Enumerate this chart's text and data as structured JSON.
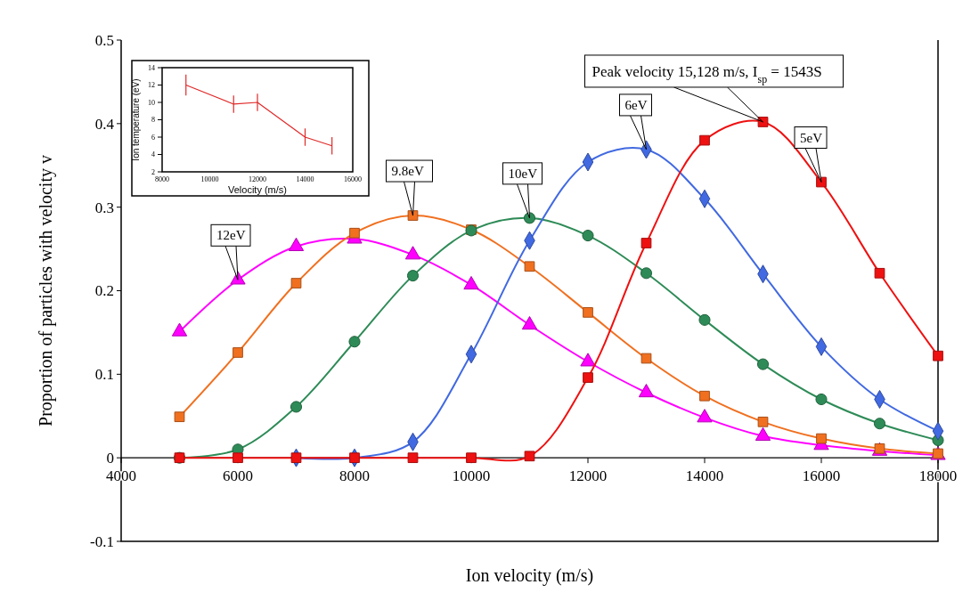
{
  "chart_data": [
    {
      "type": "line",
      "xlabel": "Ion velocity (m/s)",
      "ylabel": "Proportion of particles with velocity v",
      "x": [
        5000,
        6000,
        7000,
        8000,
        9000,
        10000,
        11000,
        12000,
        13000,
        14000,
        15000,
        16000,
        17000,
        18000
      ],
      "series": [
        {
          "color": "#ff00ff",
          "marker": "triangle",
          "values": [
            0.151,
            0.213,
            0.253,
            0.262,
            0.243,
            0.207,
            0.159,
            0.115,
            0.078,
            0.048,
            0.026,
            0.015,
            0.008,
            0.003
          ]
        },
        {
          "color": "#f07020",
          "marker": "square",
          "values": [
            0.049,
            0.126,
            0.209,
            0.269,
            0.29,
            0.273,
            0.229,
            0.174,
            0.119,
            0.074,
            0.043,
            0.023,
            0.011,
            0.005
          ]
        },
        {
          "color": "#2e8b57",
          "marker": "circle",
          "values": [
            0,
            0.01,
            0.061,
            0.139,
            0.218,
            0.272,
            0.287,
            0.266,
            0.221,
            0.165,
            0.112,
            0.07,
            0.041,
            0.021
          ]
        },
        {
          "color": "#4169e1",
          "marker": "diamond",
          "values": [
            null,
            null,
            0,
            0,
            0.019,
            0.124,
            0.26,
            0.354,
            0.369,
            0.31,
            0.22,
            0.133,
            0.07,
            0.032
          ]
        },
        {
          "color": "#ee1111",
          "marker": "square",
          "values": [
            0,
            0,
            0,
            0,
            0,
            0,
            0.002,
            0.096,
            0.257,
            0.38,
            0.402,
            0.33,
            0.221,
            0.122
          ]
        }
      ],
      "xlim": [
        4000,
        18000
      ],
      "xticks": [
        4000,
        6000,
        8000,
        10000,
        12000,
        14000,
        16000,
        18000
      ],
      "ylim": [
        -0.1,
        0.5
      ],
      "yticks": [
        {
          "value": -0.1,
          "label": "-0.1"
        },
        0,
        0.1,
        0.2,
        0.3,
        0.4,
        0.5
      ],
      "annotations": [
        {
          "text": "12eV",
          "x": 6000,
          "y": 0.213
        },
        {
          "text": "9.8eV",
          "x": 9000,
          "y": 0.29
        },
        {
          "text": "10eV",
          "x": 11000,
          "y": 0.287
        },
        {
          "text": "6eV",
          "x": 13000,
          "y": 0.369
        },
        {
          "text": "5eV",
          "x": 16000,
          "y": 0.33
        },
        {
          "text": "Peak velocity 15,128 m/s, I$_{sp}$ = 1543S",
          "x": 15000,
          "y": 0.402
        }
      ],
      "grid": false
    },
    {
      "type": "line",
      "xlabel": "Velocity (m/s)",
      "ylabel": "Ion temperature (eV)",
      "x": [
        9000,
        11000,
        12000,
        14000,
        15128
      ],
      "series": [
        {
          "color": "#e02828",
          "values": [
            12,
            9.8,
            10,
            6,
            5
          ],
          "errors": [
            1.2,
            1,
            1,
            1,
            1
          ]
        }
      ],
      "xlim": [
        8000,
        16000
      ],
      "xticks": [
        8000,
        10000,
        12000,
        14000,
        16000
      ],
      "ylim": [
        2,
        14
      ],
      "yticks": [
        2,
        4,
        6,
        8,
        10,
        12,
        14
      ],
      "grid": false,
      "marker": "none"
    }
  ]
}
